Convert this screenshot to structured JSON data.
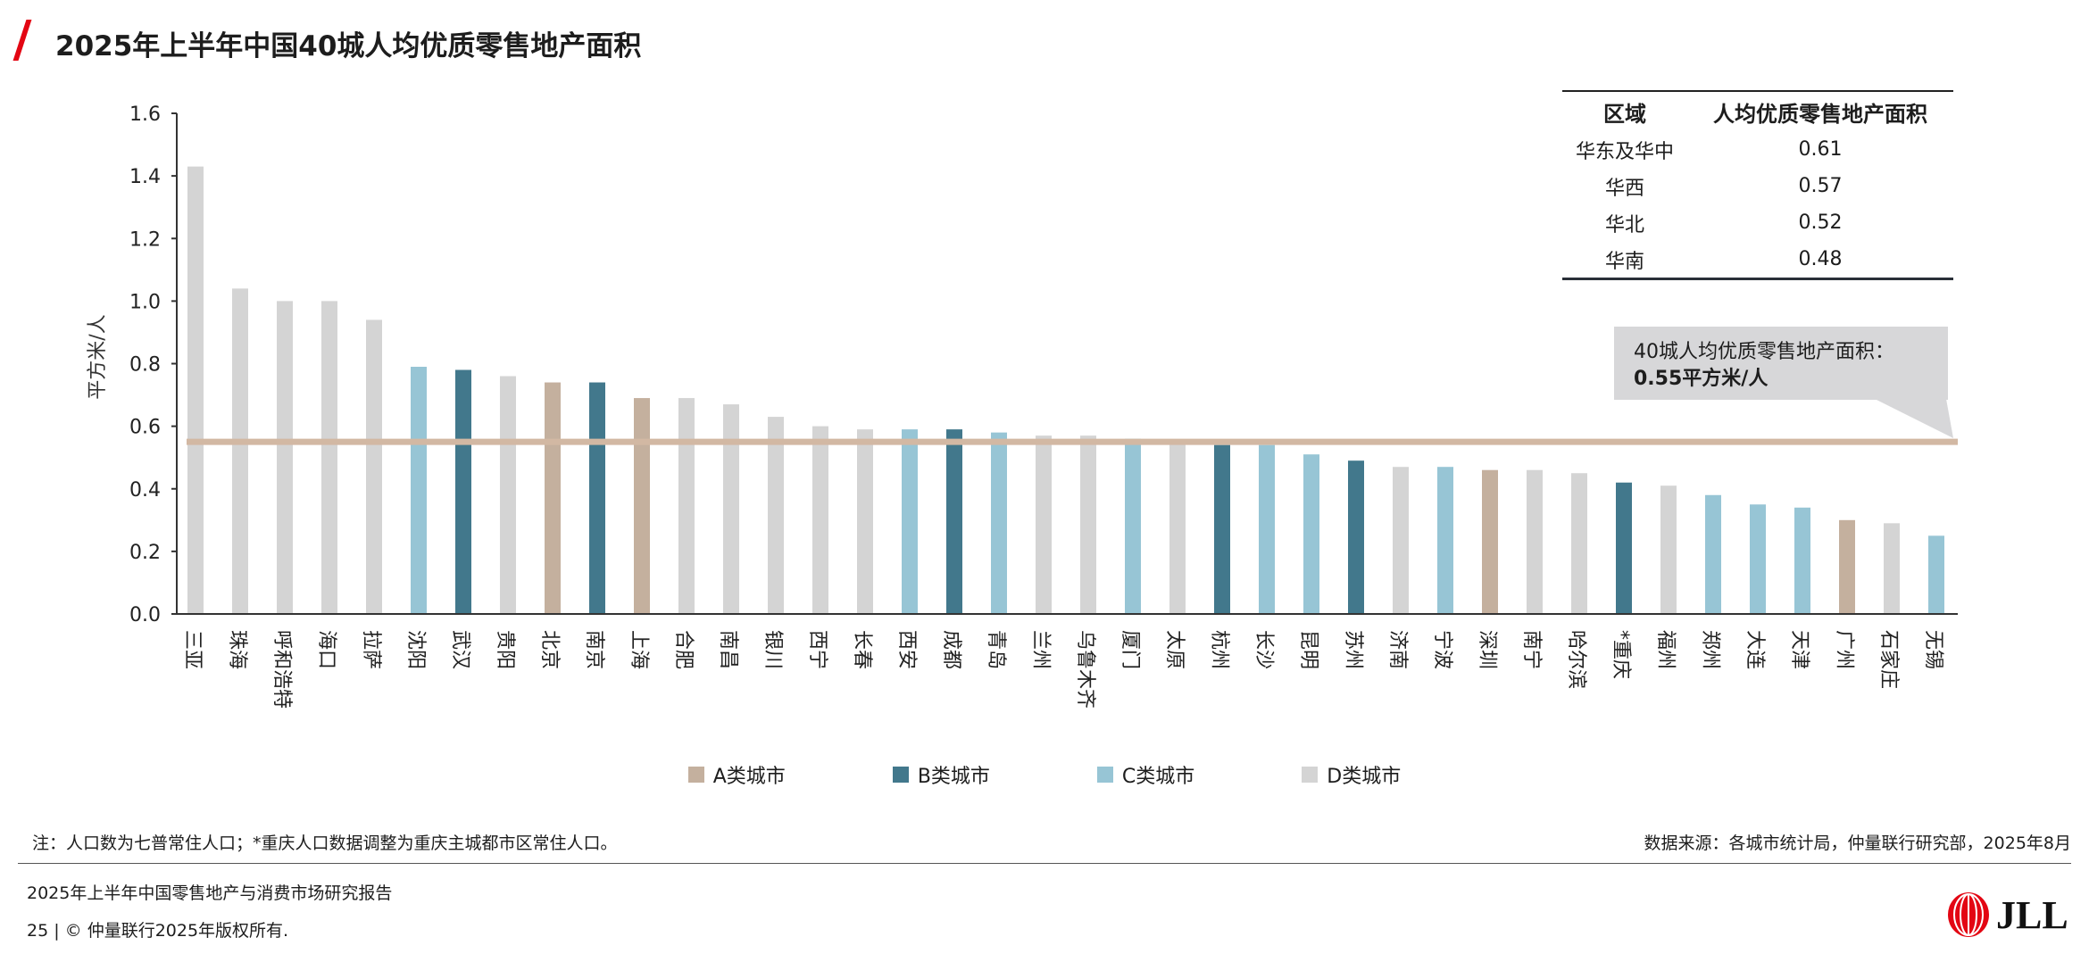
{
  "header": {
    "title": "2025年上半年中国40城人均优质零售地产面积"
  },
  "chart_data": {
    "type": "bar",
    "title": "2025年上半年中国40城人均优质零售地产面积",
    "ylabel": "平方米/人",
    "xlabel": "",
    "ylim": [
      0,
      1.6
    ],
    "yticks": [
      "0.0",
      "0.2",
      "0.4",
      "0.6",
      "0.8",
      "1.0",
      "1.2",
      "1.4",
      "1.6"
    ],
    "grid": false,
    "categories": [
      "三亚",
      "珠海",
      "呼和浩特",
      "海口",
      "拉萨",
      "沈阳",
      "武汉",
      "贵阳",
      "北京",
      "南京",
      "上海",
      "合肥",
      "南昌",
      "银川",
      "西宁",
      "长春",
      "西安",
      "成都",
      "青岛",
      "兰州",
      "乌鲁木齐",
      "厦门",
      "太原",
      "杭州",
      "长沙",
      "昆明",
      "苏州",
      "济南",
      "宁波",
      "深圳",
      "南宁",
      "哈尔滨",
      "*重庆",
      "福州",
      "郑州",
      "大连",
      "天津",
      "广州",
      "石家庄",
      "无锡"
    ],
    "values": [
      1.43,
      1.04,
      1.0,
      1.0,
      0.94,
      0.79,
      0.78,
      0.76,
      0.74,
      0.74,
      0.69,
      0.69,
      0.67,
      0.63,
      0.6,
      0.59,
      0.59,
      0.59,
      0.58,
      0.57,
      0.57,
      0.56,
      0.55,
      0.54,
      0.54,
      0.51,
      0.49,
      0.47,
      0.47,
      0.46,
      0.46,
      0.45,
      0.42,
      0.41,
      0.38,
      0.35,
      0.34,
      0.3,
      0.29,
      0.25
    ],
    "tiers": [
      "D",
      "D",
      "D",
      "D",
      "D",
      "C",
      "B",
      "D",
      "A",
      "B",
      "A",
      "D",
      "D",
      "D",
      "D",
      "D",
      "C",
      "B",
      "C",
      "D",
      "D",
      "C",
      "D",
      "B",
      "C",
      "C",
      "B",
      "D",
      "C",
      "A",
      "D",
      "D",
      "B",
      "D",
      "C",
      "C",
      "C",
      "A",
      "D",
      "C"
    ],
    "legend": [
      {
        "key": "A",
        "name": "A类城市",
        "color": "#c4b09e"
      },
      {
        "key": "B",
        "name": "B类城市",
        "color": "#42788c"
      },
      {
        "key": "C",
        "name": "C类城市",
        "color": "#97c5d5"
      },
      {
        "key": "D",
        "name": "D类城市",
        "color": "#d4d4d4"
      }
    ],
    "legend_position": "bottom",
    "reference_line": {
      "value": 0.55,
      "color": "#d2b8a3"
    }
  },
  "region_table": {
    "headers": [
      "区域",
      "人均优质零售地产面积"
    ],
    "rows": [
      [
        "华东及华中",
        "0.61"
      ],
      [
        "华西",
        "0.57"
      ],
      [
        "华北",
        "0.52"
      ],
      [
        "华南",
        "0.48"
      ]
    ]
  },
  "callout": {
    "line1": "40城人均优质零售地产面积：",
    "line2": "0.55平方米/人"
  },
  "footer": {
    "note": "注：人口数为七普常住人口；*重庆人口数据调整为重庆主城都市区常住人口。",
    "source": "数据来源：各城市统计局，仲量联行研究部，2025年8月",
    "report": "2025年上半年中国零售地产与消费市场研究报告",
    "copyright": "25 | © 仲量联行2025年版权所有.",
    "logo": "JLL"
  }
}
